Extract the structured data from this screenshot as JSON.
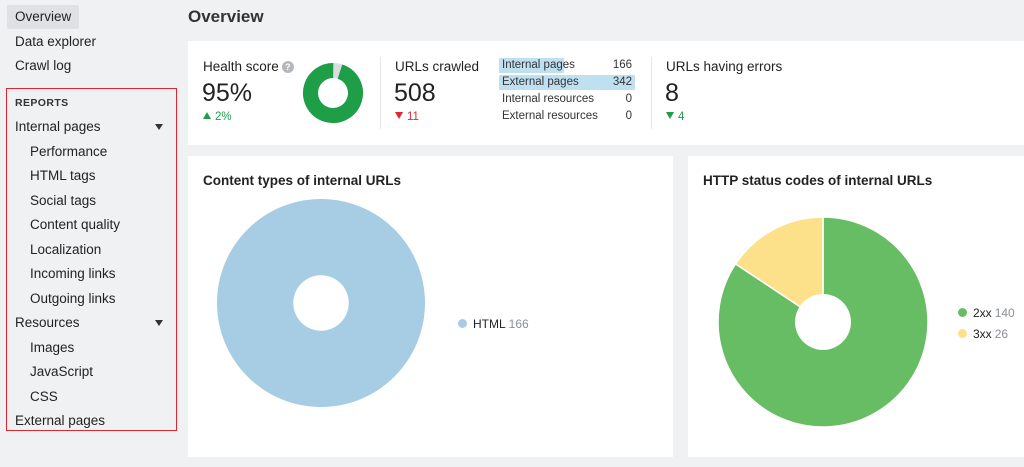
{
  "sidebar": {
    "top_items": [
      {
        "label": "Overview",
        "active": true
      },
      {
        "label": "Data explorer",
        "active": false
      },
      {
        "label": "Crawl log",
        "active": false
      }
    ],
    "reports_heading": "REPORTS",
    "reports": [
      {
        "label": "Internal pages",
        "sub": false,
        "expandable": true
      },
      {
        "label": "Performance",
        "sub": true
      },
      {
        "label": "HTML tags",
        "sub": true
      },
      {
        "label": "Social tags",
        "sub": true
      },
      {
        "label": "Content quality",
        "sub": true
      },
      {
        "label": "Localization",
        "sub": true
      },
      {
        "label": "Incoming links",
        "sub": true
      },
      {
        "label": "Outgoing links",
        "sub": true
      },
      {
        "label": "Resources",
        "sub": false,
        "expandable": true
      },
      {
        "label": "Images",
        "sub": true
      },
      {
        "label": "JavaScript",
        "sub": true
      },
      {
        "label": "CSS",
        "sub": true
      },
      {
        "label": "External pages",
        "sub": false
      }
    ]
  },
  "page_title": "Overview",
  "stats": {
    "health": {
      "label": "Health score",
      "value": "95%",
      "delta": "2%",
      "direction": "up",
      "score_fraction": 0.95,
      "ring_color": "#1e9e46",
      "track_color": "#dcdde0"
    },
    "crawled": {
      "label": "URLs crawled",
      "value": "508",
      "delta": "11",
      "direction": "down"
    },
    "breakdown": [
      {
        "label": "Internal pages",
        "count": "166",
        "fraction": 0.48
      },
      {
        "label": "External pages",
        "count": "342",
        "fraction": 1.0
      },
      {
        "label": "Internal resources",
        "count": "0",
        "fraction": 0
      },
      {
        "label": "External resources",
        "count": "0",
        "fraction": 0
      }
    ],
    "errors": {
      "label": "URLs having errors",
      "value": "8",
      "delta": "4",
      "direction": "down"
    }
  },
  "charts": [
    {
      "title": "Content types of internal URLs",
      "chart_data": {
        "type": "pie",
        "title": "Content types of internal URLs",
        "slices": [
          {
            "label": "HTML",
            "value": 166,
            "color": "#a6cde3"
          }
        ],
        "legend_position": "right",
        "donut": true
      }
    },
    {
      "title": "HTTP status codes of internal URLs",
      "chart_data": {
        "type": "pie",
        "title": "HTTP status codes of internal URLs",
        "slices": [
          {
            "label": "2xx",
            "value": 140,
            "color": "#67bd63"
          },
          {
            "label": "3xx",
            "value": 26,
            "color": "#fde08a"
          }
        ],
        "legend_position": "right",
        "donut": true
      }
    }
  ]
}
